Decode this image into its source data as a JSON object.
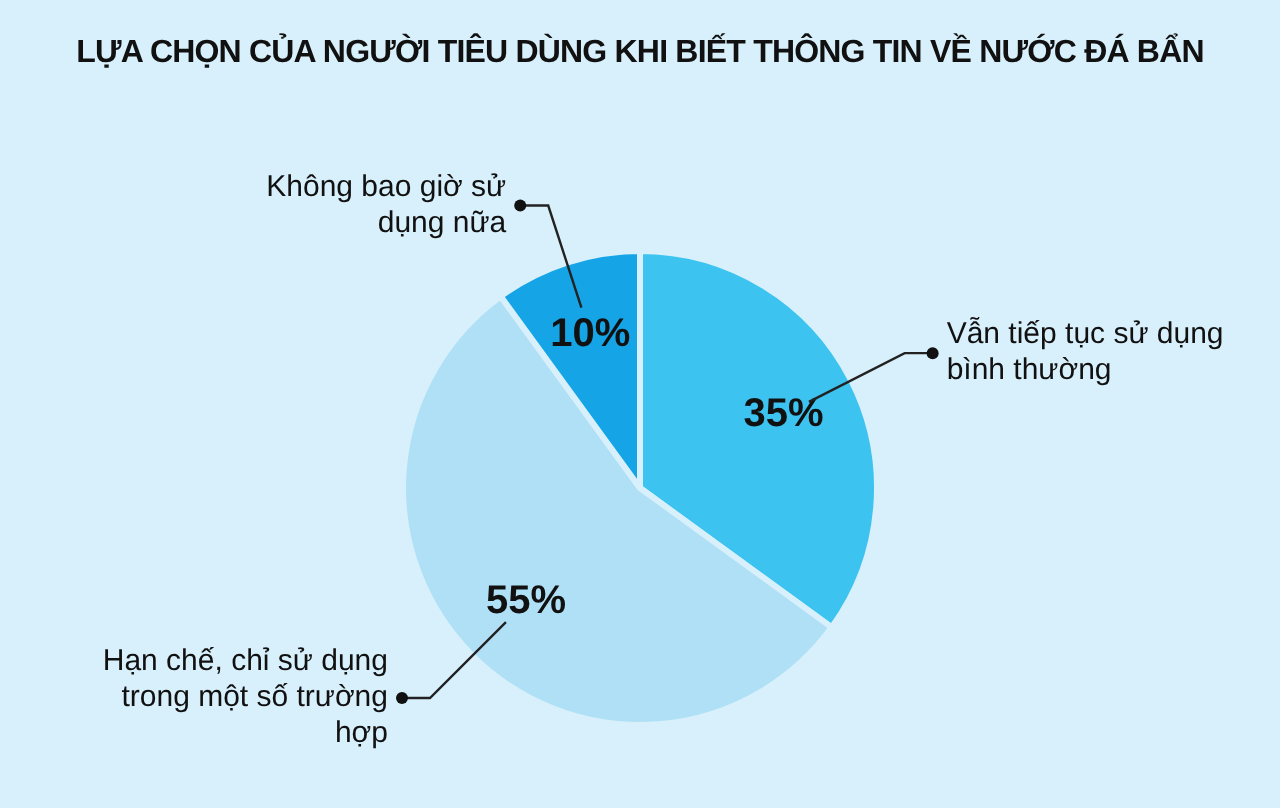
{
  "chart_data": {
    "type": "pie",
    "title": "LỰA CHỌN CỦA NGƯỜI TIÊU DÙNG KHI BIẾT THÔNG TIN VỀ NƯỚC ĐÁ BẨN",
    "categories": [
      "Vẫn tiếp tục sử dụng bình thường",
      "Hạn chế, chỉ sử dụng trong một số trường hợp",
      "Không bao giờ sử dụng nữa"
    ],
    "values": [
      35,
      55,
      10
    ],
    "colors": [
      "#3cc3ef",
      "#b0e0f6",
      "#15a4e6"
    ],
    "value_labels": [
      "35%",
      "55%",
      "10%"
    ],
    "legend": false
  }
}
